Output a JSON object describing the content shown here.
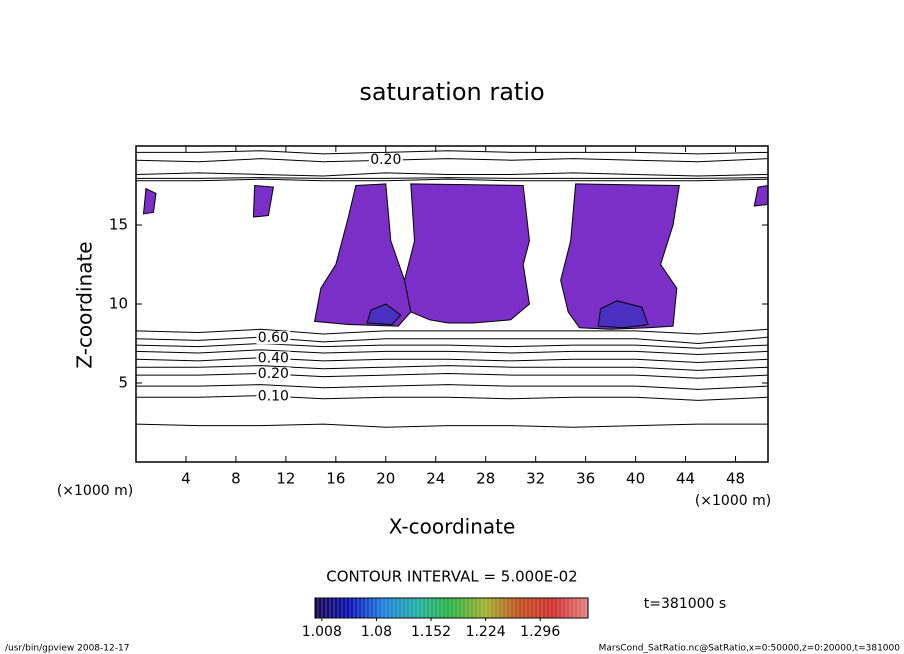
{
  "chart_data": {
    "type": "contour",
    "title": "saturation ratio",
    "x_label": "X-coordinate",
    "y_label": "Z-coordinate",
    "x_unit": "(×1000 m)",
    "y_unit": "(×1000 m)",
    "contour_interval": "CONTOUR INTERVAL = 5.000E-02",
    "time_label": "t=381000 s",
    "footer_left": "/usr/bin/gpview   2008-12-17",
    "footer_right": "MarsCond_SatRatio.nc@SatRatio,x=0:50000,z=0:20000,t=381000",
    "xlim": [
      0,
      50.6
    ],
    "ylim": [
      0,
      20
    ],
    "xticks": [
      4,
      8,
      12,
      16,
      20,
      24,
      28,
      32,
      36,
      40,
      44,
      48
    ],
    "yticks": [
      5,
      10,
      15
    ],
    "contour_x": [
      0,
      5,
      10,
      15,
      20,
      25,
      30,
      35,
      40,
      45,
      50.6
    ],
    "contours": [
      {
        "y": [
          2.4,
          2.3,
          2.3,
          2.4,
          2.2,
          2.3,
          2.3,
          2.2,
          2.3,
          2.4,
          2.4
        ]
      },
      {
        "label": "0.10",
        "y": [
          4.1,
          4.1,
          4.2,
          4.0,
          4.1,
          4.1,
          4.0,
          4.1,
          4.1,
          3.9,
          4.1
        ]
      },
      {
        "y": [
          4.8,
          4.8,
          4.9,
          4.7,
          4.8,
          4.9,
          4.8,
          4.8,
          4.8,
          4.6,
          4.8
        ]
      },
      {
        "label": "0.20",
        "y": [
          5.5,
          5.5,
          5.6,
          5.4,
          5.5,
          5.6,
          5.5,
          5.5,
          5.5,
          5.3,
          5.5
        ]
      },
      {
        "y": [
          6.0,
          6.0,
          6.1,
          5.9,
          6.0,
          6.1,
          6.0,
          6.0,
          6.0,
          5.8,
          6.0
        ]
      },
      {
        "label": "0.40",
        "y": [
          6.5,
          6.4,
          6.6,
          6.4,
          6.5,
          6.5,
          6.4,
          6.5,
          6.5,
          6.3,
          6.5
        ]
      },
      {
        "y": [
          7.0,
          6.9,
          7.1,
          6.9,
          7.0,
          7.0,
          6.9,
          7.0,
          7.0,
          6.8,
          7.0
        ]
      },
      {
        "y": [
          7.4,
          7.3,
          7.5,
          7.3,
          7.4,
          7.4,
          7.3,
          7.4,
          7.4,
          7.2,
          7.4
        ]
      },
      {
        "label": "0.60",
        "y": [
          7.8,
          7.7,
          7.9,
          7.6,
          7.8,
          7.8,
          7.8,
          7.8,
          7.8,
          7.5,
          7.9
        ]
      },
      {
        "y": [
          8.3,
          8.2,
          8.4,
          8.1,
          8.3,
          8.3,
          8.3,
          8.3,
          8.3,
          8.1,
          8.4
        ]
      },
      {
        "y": [
          17.8,
          17.8,
          17.9,
          17.8,
          17.8,
          17.9,
          17.8,
          17.8,
          17.8,
          17.8,
          17.9
        ]
      },
      {
        "y": [
          17.95,
          17.95,
          18.0,
          17.95,
          17.95,
          18.0,
          17.95,
          17.95,
          17.95,
          17.95,
          18.0
        ]
      },
      {
        "y": [
          18.2,
          18.3,
          18.2,
          18.1,
          18.3,
          18.2,
          18.2,
          18.3,
          18.2,
          18.1,
          18.2
        ]
      },
      {
        "label": "0.20",
        "y": [
          19.1,
          19.0,
          19.2,
          19.0,
          19.1,
          19.2,
          19.1,
          19.2,
          19.1,
          19.0,
          19.2
        ]
      },
      {
        "y": [
          19.6,
          19.6,
          19.7,
          19.5,
          19.6,
          19.7,
          19.6,
          19.6,
          19.6,
          19.5,
          19.6
        ]
      }
    ],
    "regions": [
      {
        "color": "#7b2fc8",
        "x": [
          14.3,
          14.8,
          16,
          17,
          17.6,
          20,
          20.4,
          21.5,
          22,
          21,
          17
        ],
        "y": [
          8.9,
          11,
          12.5,
          15.5,
          17.5,
          17.6,
          14,
          11.5,
          9.5,
          8.6,
          8.7
        ]
      },
      {
        "color": "#7b2fc8",
        "x": [
          22,
          23.5,
          25,
          27,
          30,
          31.5,
          31,
          31.5,
          31,
          22,
          22.3,
          21.5
        ],
        "y": [
          9.5,
          9,
          8.8,
          8.8,
          9,
          10,
          12.5,
          14,
          17.5,
          17.6,
          14,
          11.5
        ]
      },
      {
        "color": "#7b2fc8",
        "x": [
          35.5,
          38,
          41,
          43,
          43.3,
          42,
          43,
          43.5,
          35.2,
          34.8,
          34,
          34.6
        ],
        "y": [
          8.5,
          8.4,
          8.5,
          8.6,
          11,
          12.5,
          15,
          17.5,
          17.6,
          14,
          11.5,
          9.5
        ]
      },
      {
        "color": "#7b2fc8",
        "x": [
          0.6,
          1.4,
          1.6,
          0.8
        ],
        "y": [
          15.7,
          15.8,
          17,
          17.3
        ]
      },
      {
        "color": "#7b2fc8",
        "x": [
          9.4,
          10.6,
          11.0,
          9.5
        ],
        "y": [
          15.5,
          15.6,
          17.4,
          17.5
        ]
      },
      {
        "color": "#7b2fc8",
        "x": [
          49.5,
          50.6,
          50.6,
          49.8
        ],
        "y": [
          16.2,
          16.3,
          17.5,
          17.4
        ]
      },
      {
        "color": "#4a30c0",
        "x": [
          37,
          39,
          41,
          40.5,
          38.5,
          37.2
        ],
        "y": [
          8.6,
          8.5,
          8.7,
          9.8,
          10.2,
          9.7
        ]
      },
      {
        "color": "#4a30c0",
        "x": [
          18.5,
          20.5,
          21.2,
          20,
          18.8
        ],
        "y": [
          8.8,
          8.7,
          9.3,
          10.0,
          9.6
        ]
      }
    ],
    "colorbar": {
      "lim": [
        0.999,
        1.359
      ],
      "ticks": [
        1.008,
        1.08,
        1.152,
        1.224,
        1.296
      ],
      "colors": [
        "#1a0a50",
        "#0a10b0",
        "#2080e0",
        "#20b0a0",
        "#30b040",
        "#a0b030",
        "#c05020",
        "#d03030",
        "#e08080"
      ]
    }
  }
}
